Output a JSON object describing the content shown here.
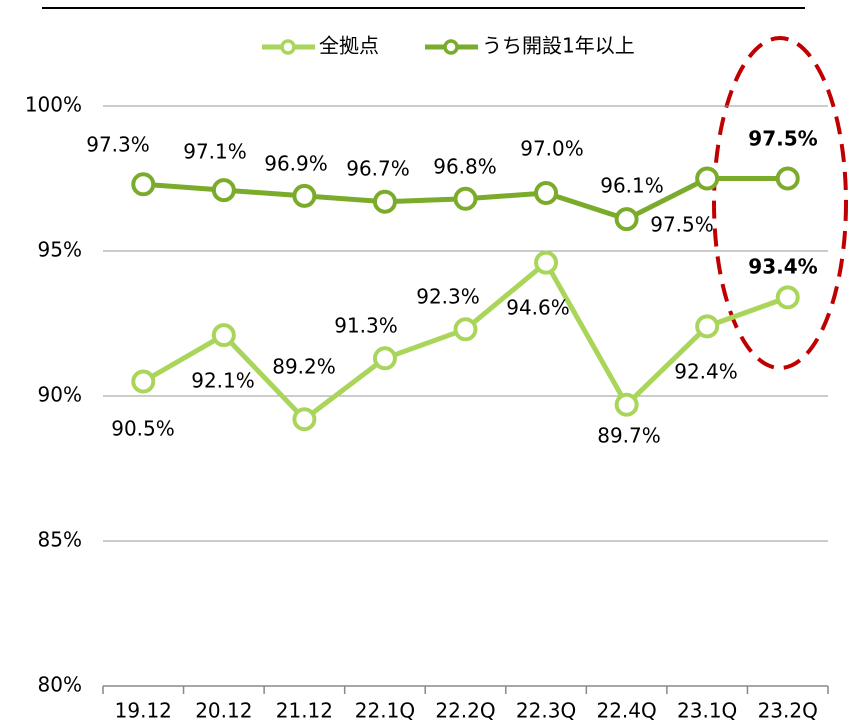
{
  "chart_data": {
    "type": "line",
    "categories": [
      "19.12",
      "20.12",
      "21.12",
      "22.1Q",
      "22.2Q",
      "22.3Q",
      "22.4Q",
      "23.1Q",
      "23.2Q"
    ],
    "series": [
      {
        "name": "全拠点",
        "color": "#a9d65a",
        "values": [
          90.5,
          92.1,
          89.2,
          91.3,
          92.3,
          94.6,
          89.7,
          92.4,
          93.4
        ],
        "value_labels": [
          "90.5%",
          "92.1%",
          "89.2%",
          "91.3%",
          "92.3%",
          "94.6%",
          "89.7%",
          "92.4%",
          "93.4%"
        ]
      },
      {
        "name": "うち開設1年以上",
        "color": "#7aab2a",
        "values": [
          97.3,
          97.1,
          96.9,
          96.7,
          96.8,
          97.0,
          96.1,
          97.5,
          97.5
        ],
        "value_labels": [
          "97.3%",
          "97.1%",
          "96.9%",
          "96.7%",
          "96.8%",
          "97.0%",
          "96.1%",
          "97.5%",
          "97.5%"
        ]
      }
    ],
    "ylim": [
      80,
      100
    ],
    "yticks": [
      {
        "value": 80,
        "label": "80%"
      },
      {
        "value": 85,
        "label": "85%"
      },
      {
        "value": 90,
        "label": "90%"
      },
      {
        "value": 95,
        "label": "95%"
      },
      {
        "value": 100,
        "label": "100%"
      }
    ],
    "grid": true,
    "legend": "top"
  }
}
